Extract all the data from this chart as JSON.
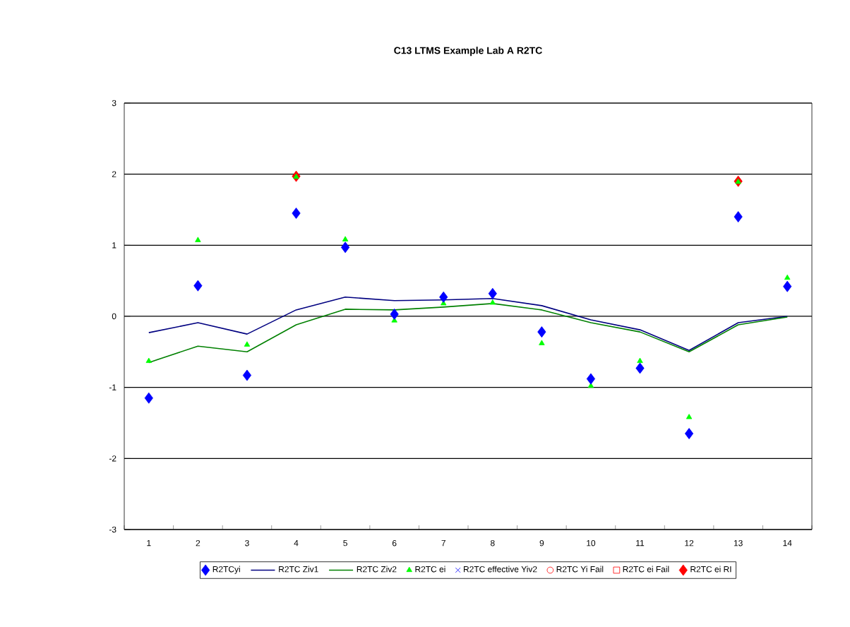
{
  "chart_data": {
    "type": "scatter",
    "title": "C13 LTMS Example Lab A R2TC",
    "categories": [
      "1",
      "2",
      "3",
      "4",
      "5",
      "6",
      "7",
      "8",
      "9",
      "10",
      "11",
      "12",
      "13",
      "14"
    ],
    "ylim": [
      -3,
      3
    ],
    "yticks": [
      -3,
      -2,
      -1,
      0,
      1,
      2,
      3
    ],
    "grid": "y",
    "legend": "bottom",
    "series": [
      {
        "name": "R2TCyi",
        "marker": "diamond",
        "color": "#0000ff",
        "values": [
          -1.15,
          0.43,
          -0.83,
          1.45,
          0.97,
          0.03,
          0.27,
          0.32,
          -0.22,
          -0.88,
          -0.73,
          -1.65,
          1.4,
          0.42
        ]
      },
      {
        "name": "R2TC Ziv1",
        "type": "line",
        "marker": "none",
        "color": "#000080",
        "values": [
          -0.23,
          -0.09,
          -0.25,
          0.09,
          0.27,
          0.22,
          0.23,
          0.25,
          0.15,
          -0.05,
          -0.19,
          -0.48,
          -0.09,
          0.0
        ]
      },
      {
        "name": "R2TC Ziv2",
        "type": "line",
        "marker": "none",
        "color": "#008000",
        "values": [
          -0.65,
          -0.42,
          -0.5,
          -0.12,
          0.1,
          0.09,
          0.13,
          0.18,
          0.09,
          -0.09,
          -0.22,
          -0.5,
          -0.12,
          -0.01
        ]
      },
      {
        "name": "R2TC ei",
        "marker": "triangle",
        "color": "#00ff00",
        "values": [
          -0.63,
          1.07,
          -0.4,
          1.96,
          1.08,
          -0.06,
          0.18,
          0.19,
          -0.38,
          -0.98,
          -0.63,
          -1.42,
          1.89,
          0.54
        ]
      },
      {
        "name": "R2TC effective Yiv2",
        "marker": "cross",
        "color": "#0000ff",
        "values": [
          null,
          null,
          null,
          null,
          null,
          null,
          null,
          null,
          null,
          null,
          null,
          null,
          null,
          null
        ]
      },
      {
        "name": "R2TC Yi Fail",
        "marker": "circle",
        "color": "#ff0000",
        "values": [
          null,
          null,
          null,
          null,
          null,
          null,
          null,
          null,
          null,
          null,
          null,
          null,
          null,
          null
        ]
      },
      {
        "name": "R2TC ei Fail",
        "marker": "square",
        "color": "#ff0000",
        "values": [
          null,
          null,
          null,
          null,
          null,
          null,
          null,
          null,
          null,
          null,
          null,
          null,
          null,
          null
        ]
      },
      {
        "name": "R2TC ei RI",
        "marker": "diamond",
        "color": "#ff0000",
        "values": [
          null,
          null,
          null,
          1.97,
          null,
          null,
          null,
          null,
          null,
          null,
          null,
          null,
          1.9,
          null
        ]
      }
    ]
  }
}
